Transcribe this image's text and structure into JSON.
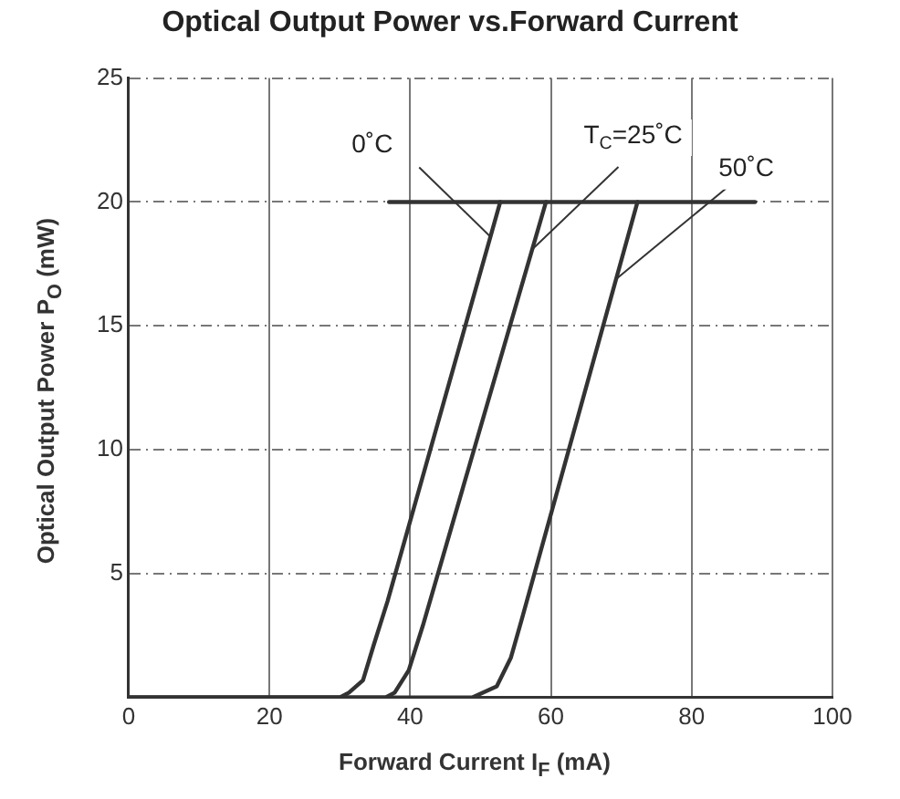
{
  "chart_data": {
    "type": "line",
    "title": "Optical Output Power vs.Forward Current",
    "xlabel": "Forward Current I$_{F}$ (mA)",
    "ylabel": "Optical Output Power P$_{O}$ (mW)",
    "xlim": [
      0,
      100
    ],
    "xticks": [
      0,
      20,
      40,
      60,
      80,
      100
    ],
    "ylim": [
      0,
      25
    ],
    "yticks": [
      {
        "value": 0,
        "label": null
      },
      5,
      10,
      15,
      20,
      25
    ],
    "grid": true,
    "legend": false,
    "marker": "none",
    "line_style": "solid",
    "series": [
      {
        "color": "#333333",
        "x": [
          0,
          30,
          31.3,
          33.3,
          34.8,
          36.8,
          52.8
        ],
        "values": [
          0,
          0,
          0.2,
          0.7,
          2.1,
          3.9,
          20
        ]
      },
      {
        "color": "#333333",
        "x": [
          0,
          36.5,
          37.8,
          39.8,
          41.8,
          59.3
        ],
        "values": [
          0,
          0,
          0.2,
          1.1,
          2.9,
          20
        ]
      },
      {
        "color": "#333333",
        "x": [
          0,
          48.8,
          52.3,
          54.3,
          55.8,
          72.3
        ],
        "values": [
          0,
          0,
          0.45,
          1.6,
          3.1,
          20
        ]
      },
      {
        "color": "#333333",
        "x": [
          37,
          89
        ],
        "values": [
          20,
          20
        ]
      }
    ],
    "annotations": [
      {
        "text": "0˚C",
        "x": 51.4,
        "y": 18.6
      },
      {
        "text": "T$_{C}$=25˚C",
        "x": 57.4,
        "y": 18.1
      },
      {
        "text": "50˚C",
        "x": 69.3,
        "y": 16.9
      }
    ]
  }
}
